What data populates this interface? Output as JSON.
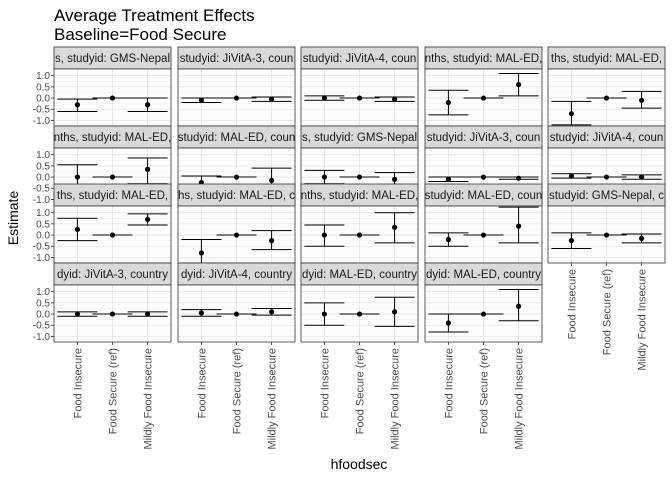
{
  "chart_data": {
    "type": "errorbar",
    "title": "Average Treatment Effects",
    "subtitle": "Baseline=Food Secure",
    "xlabel": "hfoodsec",
    "ylabel": "Estimate",
    "categories": [
      "Food Insecure",
      "Food Secure (ref)",
      "Mildly Food Insecure"
    ],
    "ylim": [
      -1.25,
      1.3
    ],
    "yticks": [
      1.0,
      0.5,
      0.0,
      -0.5,
      -1.0
    ],
    "ytick_labels": [
      "1.0",
      "0.5",
      "0.0",
      "-0.5",
      "-1.0"
    ],
    "grid": true,
    "panels": [
      {
        "strip": "s, studyid: GMS-Nepal",
        "est": [
          -0.3,
          0.0,
          -0.3
        ],
        "lo": [
          -0.6,
          0.0,
          -0.6
        ],
        "hi": [
          -0.05,
          0.0,
          0.0
        ]
      },
      {
        "strip": "studyid: JiVitA-3, coun",
        "est": [
          -0.1,
          0.0,
          -0.05
        ],
        "lo": [
          -0.2,
          0.0,
          -0.15
        ],
        "hi": [
          0.0,
          0.0,
          0.05
        ]
      },
      {
        "strip": "studyid: JiVitA-4, coun",
        "est": [
          0.0,
          0.0,
          -0.05
        ],
        "lo": [
          -0.1,
          0.0,
          -0.15
        ],
        "hi": [
          0.1,
          0.0,
          0.05
        ]
      },
      {
        "strip": "nths, studyid: MAL-ED,",
        "est": [
          -0.2,
          0.0,
          0.6
        ],
        "lo": [
          -0.75,
          0.0,
          0.1
        ],
        "hi": [
          0.35,
          0.0,
          1.1
        ]
      },
      {
        "strip": "ths, studyid: MAL-ED,",
        "est": [
          -0.7,
          0.0,
          -0.1
        ],
        "lo": [
          -1.2,
          0.0,
          -0.45
        ],
        "hi": [
          -0.15,
          0.0,
          0.3
        ]
      },
      {
        "strip": "nths, studyid: MAL-ED,",
        "est": [
          0.0,
          0.0,
          0.35
        ],
        "lo": [
          -0.55,
          0.0,
          -0.3
        ],
        "hi": [
          0.55,
          0.0,
          0.85
        ]
      },
      {
        "strip": "studyid: MAL-ED, coun",
        "est": [
          -0.25,
          0.0,
          -0.15
        ],
        "lo": [
          -0.55,
          0.0,
          -0.7
        ],
        "hi": [
          0.05,
          0.0,
          0.4
        ]
      },
      {
        "strip": "s, studyid: GMS-Nepal",
        "est": [
          0.0,
          0.0,
          -0.1
        ],
        "lo": [
          -0.3,
          0.0,
          -0.35
        ],
        "hi": [
          0.3,
          0.0,
          0.2
        ]
      },
      {
        "strip": "studyid: JiVitA-3, coun",
        "est": [
          -0.1,
          0.0,
          -0.05
        ],
        "lo": [
          -0.2,
          0.0,
          -0.1
        ],
        "hi": [
          0.0,
          0.0,
          0.0
        ]
      },
      {
        "strip": "studyid: JiVitA-4, coun",
        "est": [
          0.05,
          0.0,
          0.0
        ],
        "lo": [
          -0.05,
          0.0,
          -0.1
        ],
        "hi": [
          0.15,
          0.0,
          0.1
        ]
      },
      {
        "strip": "ths, studyid: MAL-ED,",
        "est": [
          0.25,
          0.0,
          0.7
        ],
        "lo": [
          -0.25,
          0.0,
          0.45
        ],
        "hi": [
          0.75,
          0.0,
          0.95
        ]
      },
      {
        "strip": "hs, studyid: MAL-ED, c",
        "est": [
          -0.8,
          0.0,
          -0.25
        ],
        "lo": [
          -1.25,
          0.0,
          -0.65
        ],
        "hi": [
          -0.2,
          0.0,
          0.2
        ]
      },
      {
        "strip": "nths, studyid: MAL-ED,",
        "est": [
          0.0,
          0.0,
          0.35
        ],
        "lo": [
          -0.5,
          0.0,
          -0.35
        ],
        "hi": [
          0.45,
          0.0,
          1.0
        ]
      },
      {
        "strip": "studyid: MAL-ED, coun",
        "est": [
          -0.2,
          0.0,
          0.4
        ],
        "lo": [
          -0.5,
          0.0,
          -0.35
        ],
        "hi": [
          0.1,
          0.0,
          1.25
        ]
      },
      {
        "strip": "studyid: GMS-Nepal, c",
        "est": [
          -0.25,
          0.0,
          -0.15
        ],
        "lo": [
          -0.6,
          0.0,
          -0.35
        ],
        "hi": [
          0.1,
          0.0,
          0.05
        ]
      },
      {
        "strip": "dyid: JiVitA-3, country",
        "est": [
          0.0,
          0.0,
          0.0
        ],
        "lo": [
          -0.1,
          0.0,
          -0.1
        ],
        "hi": [
          0.1,
          0.0,
          0.1
        ]
      },
      {
        "strip": "dyid: JiVitA-4, country",
        "est": [
          0.05,
          0.0,
          0.1
        ],
        "lo": [
          -0.1,
          0.0,
          -0.05
        ],
        "hi": [
          0.2,
          0.0,
          0.25
        ]
      },
      {
        "strip": "dyid: MAL-ED, country",
        "est": [
          0.0,
          0.0,
          0.1
        ],
        "lo": [
          -0.5,
          0.0,
          -0.55
        ],
        "hi": [
          0.5,
          0.0,
          0.75
        ]
      },
      {
        "strip": "dyid: MAL-ED, country",
        "est": [
          -0.4,
          0.0,
          0.35
        ],
        "lo": [
          -0.8,
          0.0,
          -0.3
        ],
        "hi": [
          0.0,
          0.0,
          1.1
        ]
      }
    ]
  }
}
